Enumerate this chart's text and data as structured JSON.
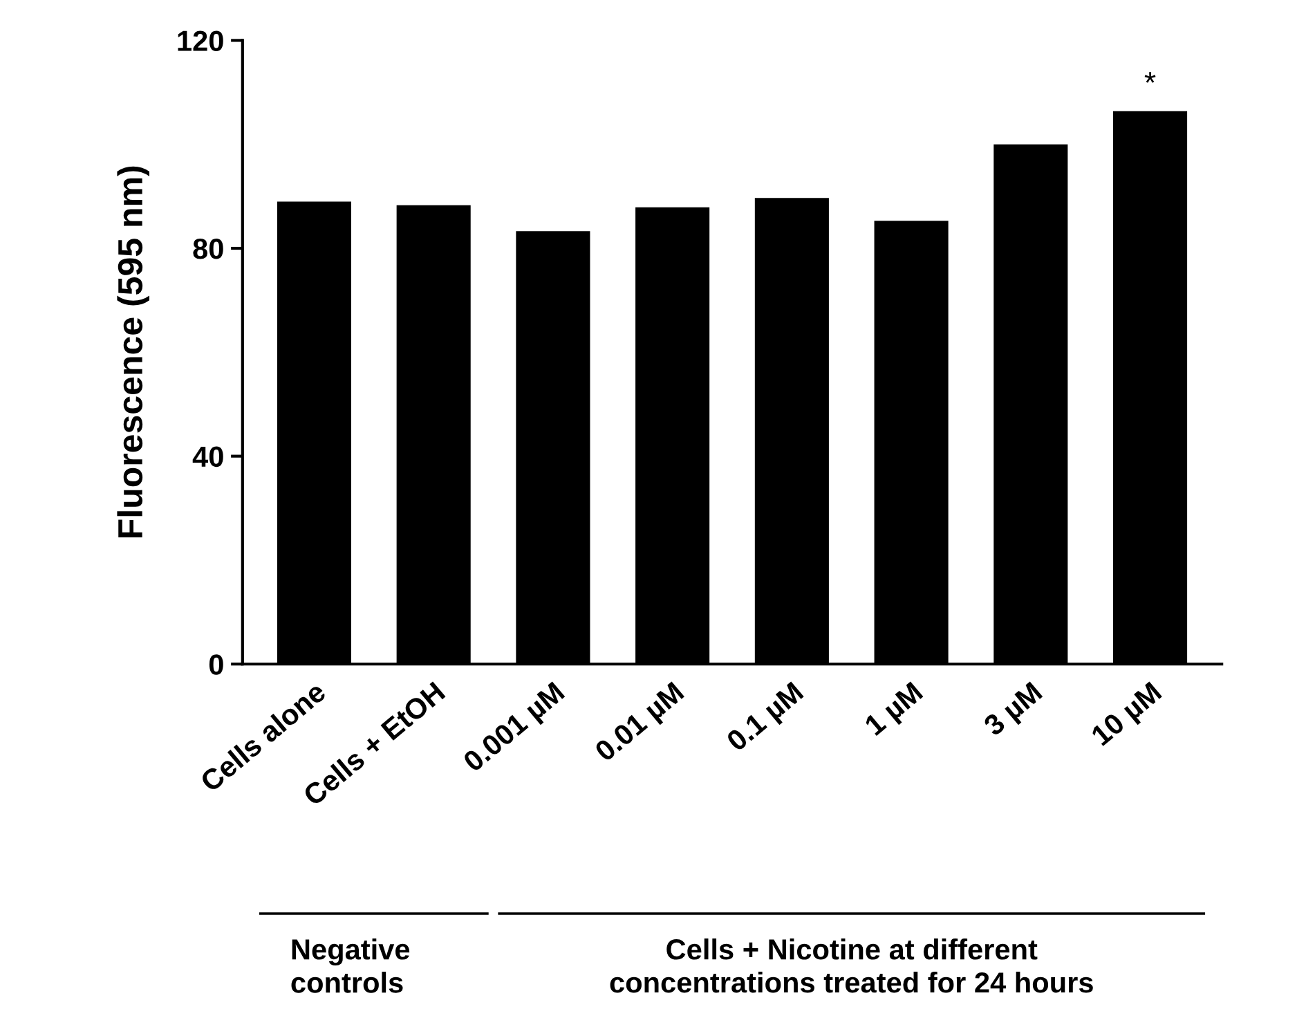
{
  "chart_data": {
    "type": "bar",
    "ylabel": "Fluorescence (595 nm)",
    "categories": [
      "Cells alone",
      "Cells + EtOH",
      "0.001 µM",
      "0.01 µM",
      "0.1 µM",
      "1 µM",
      "3 µM",
      "10 µM"
    ],
    "values": [
      89.0,
      88.3,
      83.3,
      87.9,
      89.7,
      85.3,
      100.0,
      106.4
    ],
    "color": "#000000",
    "ylim": [
      0,
      120
    ],
    "yticks": [
      0,
      40,
      80,
      120
    ],
    "grid": false,
    "legend": false,
    "annotations": [
      {
        "text": "*",
        "x": "10 µM",
        "y": 106.4
      },
      "Negative\ncontrols",
      "Cells + Nicotine at different\nconcentrations treated for 24 hours"
    ]
  }
}
